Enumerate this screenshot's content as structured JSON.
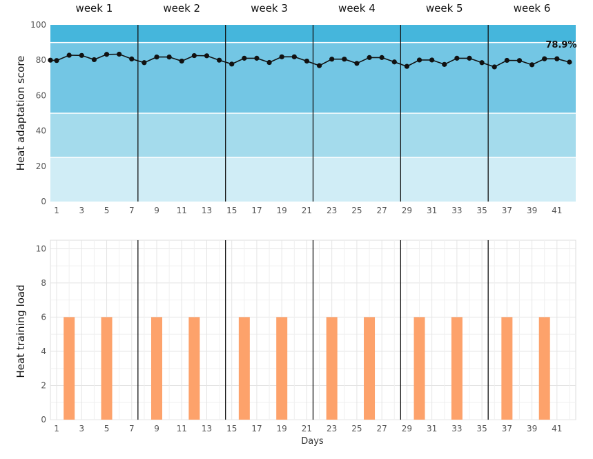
{
  "chart_data": [
    {
      "type": "line",
      "ylabel": "Heat adaptation score",
      "ylim": [
        0,
        100
      ],
      "yticks": [
        0,
        20,
        40,
        60,
        80,
        100
      ],
      "xlim": [
        0.5,
        42.5
      ],
      "xticks": [
        1,
        3,
        5,
        7,
        9,
        11,
        13,
        15,
        17,
        19,
        21,
        23,
        25,
        27,
        29,
        31,
        33,
        35,
        37,
        39,
        41
      ],
      "week_labels": [
        "week 1",
        "week 2",
        "week 3",
        "week 4",
        "week 5",
        "week 6"
      ],
      "week_boundaries": [
        7.5,
        14.5,
        21.5,
        28.5,
        35.5
      ],
      "bands": [
        {
          "from": 0,
          "to": 25,
          "color": "#d0edf6"
        },
        {
          "from": 25,
          "to": 50,
          "color": "#a4dbec"
        },
        {
          "from": 50,
          "to": 90,
          "color": "#73c6e4"
        },
        {
          "from": 90,
          "to": 100,
          "color": "#45b6dc"
        }
      ],
      "line_color": "#111111",
      "x": [
        0.5,
        1,
        2,
        3,
        4,
        5,
        6,
        7,
        8,
        9,
        10,
        11,
        12,
        13,
        14,
        15,
        16,
        17,
        18,
        19,
        20,
        21,
        22,
        23,
        24,
        25,
        26,
        27,
        28,
        29,
        30,
        31,
        32,
        33,
        34,
        35,
        36,
        37,
        38,
        39,
        40,
        41,
        42
      ],
      "y": [
        80,
        79.8,
        82.8,
        82.7,
        80.3,
        83.3,
        83.4,
        80.7,
        78.6,
        81.8,
        81.8,
        79.5,
        82.6,
        82.5,
        80,
        77.8,
        81.1,
        81.1,
        78.7,
        81.9,
        81.9,
        79.5,
        76.9,
        80.6,
        80.6,
        78.2,
        81.5,
        81.5,
        79,
        76.5,
        80.1,
        80.1,
        77.6,
        81.1,
        81.1,
        78.6,
        76.2,
        79.9,
        79.8,
        77.4,
        80.8,
        80.8,
        78.9
      ],
      "annotation": {
        "text": "78.9%",
        "x": 42,
        "y": 78.9
      }
    },
    {
      "type": "bar",
      "ylabel": "Heat training load",
      "xlabel": "Days",
      "ylim": [
        0,
        10.5
      ],
      "yticks": [
        0,
        2,
        4,
        6,
        8,
        10
      ],
      "xlim": [
        0.5,
        42.5
      ],
      "xticks": [
        1,
        3,
        5,
        7,
        9,
        11,
        13,
        15,
        17,
        19,
        21,
        23,
        25,
        27,
        29,
        31,
        33,
        35,
        37,
        39,
        41
      ],
      "week_boundaries": [
        7.5,
        14.5,
        21.5,
        28.5,
        35.5
      ],
      "bar_color": "#fda26b",
      "x": [
        2,
        5,
        9,
        12,
        16,
        19,
        23,
        26,
        30,
        33,
        37,
        40
      ],
      "values": [
        6,
        6,
        6,
        6,
        6,
        6,
        6,
        6,
        6,
        6,
        6,
        6
      ]
    }
  ]
}
